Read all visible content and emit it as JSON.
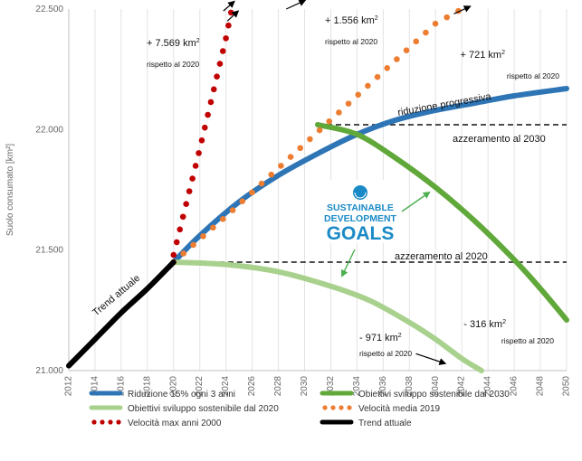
{
  "chart_data": {
    "type": "line",
    "ylabel": "Suolo consumato [km²]",
    "xlim": [
      2012,
      2050
    ],
    "ylim": [
      21000,
      22500
    ],
    "xticks": [
      2012,
      2014,
      2016,
      2018,
      2020,
      2022,
      2024,
      2026,
      2028,
      2030,
      2032,
      2034,
      2036,
      2038,
      2040,
      2042,
      2044,
      2046,
      2048,
      2050
    ],
    "yticks": [
      21000,
      21500,
      22000,
      22500
    ],
    "ytick_labels": [
      "21.000",
      "21.500",
      "22.000",
      "22.500"
    ],
    "grid": "vertical",
    "legend_position": "bottom",
    "series": [
      {
        "name": "Riduzione 15% ogni 3 anni",
        "color": "#2e75b6",
        "style": "solid",
        "x": [
          2020,
          2022,
          2025,
          2028,
          2031,
          2034,
          2037,
          2040,
          2043,
          2046,
          2050
        ],
        "y": [
          21450,
          21560,
          21700,
          21810,
          21900,
          21980,
          22040,
          22080,
          22110,
          22140,
          22170
        ]
      },
      {
        "name": "Obiettivi sviluppo sostenibile dal 2030",
        "color": "#5fa839",
        "style": "solid",
        "x": [
          2031,
          2034,
          2037,
          2040,
          2043,
          2046,
          2048,
          2050
        ],
        "y": [
          22020,
          21980,
          21880,
          21760,
          21620,
          21460,
          21340,
          21210
        ]
      },
      {
        "name": "Obiettivi sviluppo sostenibile dal 2020",
        "color": "#a9d18e",
        "style": "solid",
        "x": [
          2020,
          2024,
          2028,
          2032,
          2035,
          2038,
          2040,
          2042,
          2043.5
        ],
        "y": [
          21450,
          21440,
          21410,
          21350,
          21290,
          21200,
          21130,
          21050,
          21000
        ]
      },
      {
        "name": "Velocità media 2019",
        "color": "#ed7d31",
        "style": "dotted",
        "x": [
          2020,
          2024,
          2028,
          2032,
          2036,
          2040,
          2042
        ],
        "y": [
          21450,
          21640,
          21840,
          22040,
          22240,
          22440,
          22500
        ]
      },
      {
        "name": "Velocità max anni 2000",
        "color": "#c00000",
        "style": "dotted",
        "x": [
          2020,
          2021,
          2022,
          2023,
          2024,
          2024.4
        ],
        "y": [
          21480,
          21700,
          21920,
          22150,
          22380,
          22490
        ]
      },
      {
        "name": "Trend attuale",
        "color": "#000000",
        "style": "solid",
        "x": [
          2012,
          2014,
          2016,
          2018,
          2020
        ],
        "y": [
          21020,
          21130,
          21240,
          21340,
          21450
        ]
      }
    ],
    "reference_lines": [
      {
        "label": "azzeramento al 2030",
        "y": 22020,
        "x_start": 2031,
        "x_end": 2050
      },
      {
        "label": "azzeramento al 2020",
        "y": 21450,
        "x_start": 2020,
        "x_end": 2050
      }
    ],
    "annotations": [
      {
        "id": "red",
        "value": "+ 7.569 km",
        "sup": "2",
        "sub": "rispetto al 2020"
      },
      {
        "id": "orange",
        "value": "+ 1.556 km",
        "sup": "2",
        "sub": "rispetto al 2020"
      },
      {
        "id": "blue",
        "value": "+ 721 km",
        "sup": "2",
        "sub": "rispetto al 2020"
      },
      {
        "id": "green",
        "value": "- 316 km",
        "sup": "2",
        "sub": "rispetto al 2020"
      },
      {
        "id": "lightgreen",
        "value": "- 971 km",
        "sup": "2",
        "sub": "rispetto al 2020"
      }
    ],
    "line_labels": {
      "blue": "riduzione progressiva",
      "black": "Trend attuale"
    },
    "logo": {
      "line1": "SUSTAINABLE",
      "line2": "DEVELOPMENT",
      "line3": "GOALS"
    }
  }
}
